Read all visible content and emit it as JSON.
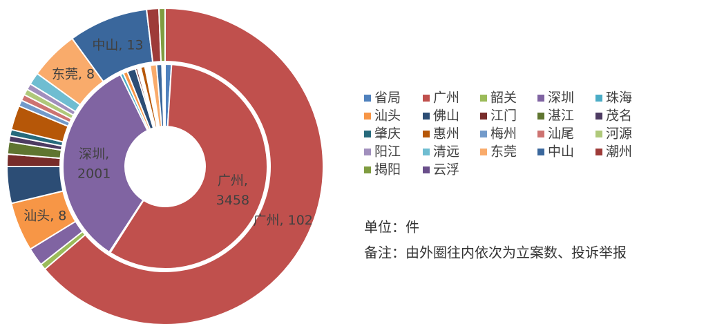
{
  "chart_data": {
    "type": "donut",
    "categories": [
      "省局",
      "广州",
      "韶关",
      "深圳",
      "珠海",
      "汕头",
      "佛山",
      "江门",
      "湛江",
      "茂名",
      "肇庆",
      "惠州",
      "梅州",
      "汕尾",
      "河源",
      "阳江",
      "清远",
      "东莞",
      "中山",
      "潮州",
      "揭阳",
      "云浮"
    ],
    "colors": [
      "#4f81bd",
      "#c0504d",
      "#9bbb59",
      "#8064a2",
      "#4bacc6",
      "#f79646",
      "#2c4d75",
      "#772c2a",
      "#5f7530",
      "#4d3b62",
      "#276a7c",
      "#b65708",
      "#729aca",
      "#cd7371",
      "#afc97a",
      "#a18fbd",
      "#6fbdd1",
      "#f9ab6b",
      "#3a679c",
      "#9e3b38",
      "#7f9c40",
      "#6a4f8b"
    ],
    "series": [
      {
        "values": [
          0,
          102,
          1,
          3,
          0,
          8,
          6,
          2,
          2,
          1,
          1,
          4,
          1,
          1,
          1,
          1,
          2,
          8,
          13,
          2,
          1,
          0
        ],
        "value_labels": [
          null,
          "广州, 102",
          null,
          null,
          null,
          "汕头, 8",
          null,
          null,
          null,
          null,
          null,
          null,
          null,
          null,
          null,
          null,
          null,
          "东莞, 8",
          "中山, 13",
          null,
          null,
          null
        ]
      },
      {
        "values": [
          60,
          3458,
          10,
          2001,
          30,
          40,
          80,
          20,
          10,
          10,
          10,
          40,
          10,
          10,
          10,
          10,
          10,
          60,
          50,
          10,
          10,
          10
        ],
        "value_labels": [
          null,
          "广州, 3458",
          null,
          "深圳, 2001",
          null,
          null,
          null,
          null,
          null,
          null,
          null,
          null,
          null,
          null,
          null,
          null,
          null,
          null,
          null,
          null,
          null,
          null
        ]
      }
    ],
    "unit_note": "单位：件",
    "remark": "备注：由外圈往内依次为立案数、投诉举报"
  }
}
